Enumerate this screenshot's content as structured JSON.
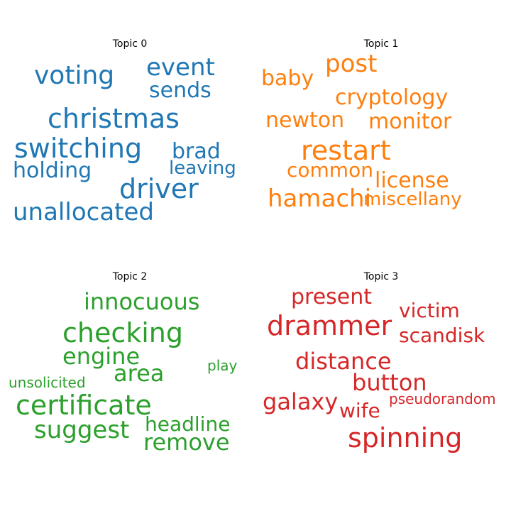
{
  "chart_data": [
    {
      "type": "wordcloud",
      "title": "Topic 0",
      "color": "#1f77b4",
      "words": [
        {
          "text": "voting"
        },
        {
          "text": "event"
        },
        {
          "text": "sends"
        },
        {
          "text": "christmas"
        },
        {
          "text": "switching"
        },
        {
          "text": "brad"
        },
        {
          "text": "holding"
        },
        {
          "text": "leaving"
        },
        {
          "text": "driver"
        },
        {
          "text": "unallocated"
        }
      ]
    },
    {
      "type": "wordcloud",
      "title": "Topic 1",
      "color": "#ff7f0e",
      "words": [
        {
          "text": "post"
        },
        {
          "text": "baby"
        },
        {
          "text": "cryptology"
        },
        {
          "text": "newton"
        },
        {
          "text": "monitor"
        },
        {
          "text": "restart"
        },
        {
          "text": "common"
        },
        {
          "text": "license"
        },
        {
          "text": "hamachi"
        },
        {
          "text": "miscellany"
        }
      ]
    },
    {
      "type": "wordcloud",
      "title": "Topic 2",
      "color": "#2ca02c",
      "words": [
        {
          "text": "innocuous"
        },
        {
          "text": "checking"
        },
        {
          "text": "engine"
        },
        {
          "text": "area"
        },
        {
          "text": "play"
        },
        {
          "text": "unsolicited"
        },
        {
          "text": "certificate"
        },
        {
          "text": "suggest"
        },
        {
          "text": "headline"
        },
        {
          "text": "remove"
        }
      ]
    },
    {
      "type": "wordcloud",
      "title": "Topic 3",
      "color": "#d62728",
      "words": [
        {
          "text": "present"
        },
        {
          "text": "victim"
        },
        {
          "text": "drammer"
        },
        {
          "text": "scandisk"
        },
        {
          "text": "distance"
        },
        {
          "text": "button"
        },
        {
          "text": "galaxy"
        },
        {
          "text": "pseudorandom"
        },
        {
          "text": "wife"
        },
        {
          "text": "spinning"
        }
      ]
    }
  ]
}
